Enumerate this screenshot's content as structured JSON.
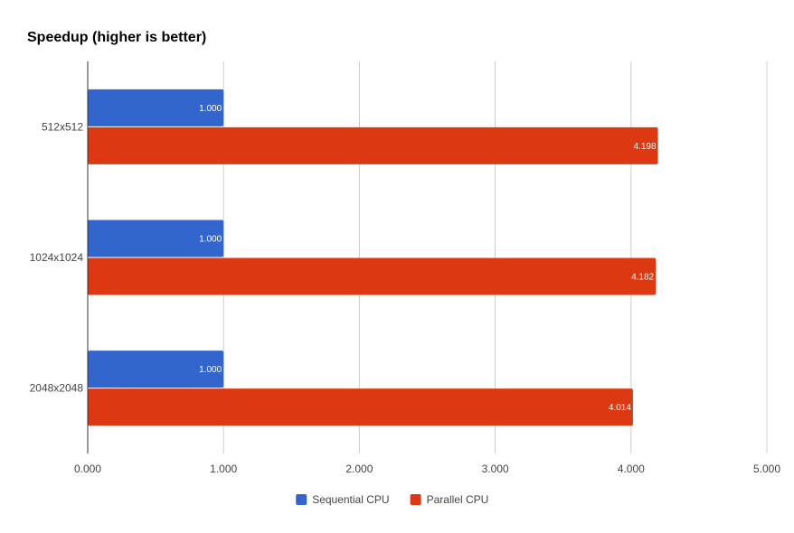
{
  "chart_data": {
    "type": "bar",
    "orientation": "horizontal",
    "title": "Speedup (higher is better)",
    "xlabel": "",
    "ylabel": "",
    "categories": [
      "512x512",
      "1024x1024",
      "2048x2048"
    ],
    "series": [
      {
        "name": "Sequential CPU",
        "color": "#3366cc",
        "values": [
          1.0,
          1.0,
          1.0
        ],
        "labels": [
          "1.000",
          "1.000",
          "1.000"
        ]
      },
      {
        "name": "Parallel CPU",
        "color": "#dc3912",
        "values": [
          4.198,
          4.182,
          4.014
        ],
        "labels": [
          "4.198",
          "4.182",
          "4.014"
        ]
      }
    ],
    "xlim": [
      0,
      5
    ],
    "xticks": [
      "0.000",
      "1.000",
      "2.000",
      "3.000",
      "4.000",
      "5.000"
    ],
    "grid": true,
    "legend": "bottom"
  }
}
